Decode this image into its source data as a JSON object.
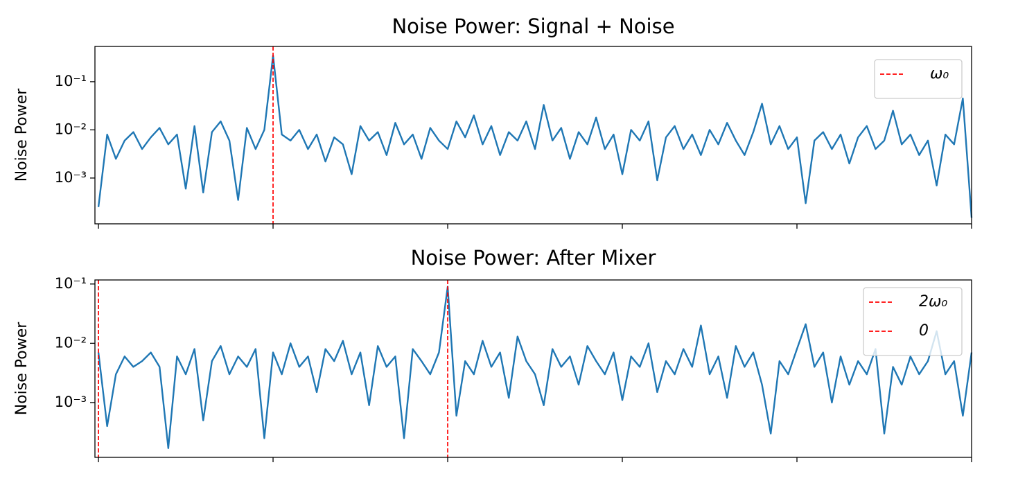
{
  "chart_data": [
    {
      "type": "line",
      "title": "Noise Power: Signal + Noise",
      "y_label": "Noise Power",
      "y_scale": "log",
      "x": [
        0,
        1,
        2,
        3,
        4,
        5,
        6,
        7,
        8,
        9,
        10,
        11,
        12,
        13,
        14,
        15,
        16,
        17,
        18,
        19,
        20,
        21,
        22,
        23,
        24,
        25,
        26,
        27,
        28,
        29,
        30,
        31,
        32,
        33,
        34,
        35,
        36,
        37,
        38,
        39,
        40,
        41,
        42,
        43,
        44,
        45,
        46,
        47,
        48,
        49,
        50,
        51,
        52,
        53,
        54,
        55,
        56,
        57,
        58,
        59,
        60,
        61,
        62,
        63,
        64,
        65,
        66,
        67,
        68,
        69,
        70,
        71,
        72,
        73,
        74,
        75,
        76,
        77,
        78,
        79,
        80,
        81,
        82,
        83,
        84,
        85,
        86,
        87,
        88,
        89,
        90,
        91,
        92,
        93,
        94,
        95,
        96,
        97,
        98,
        99,
        100
      ],
      "series": [
        {
          "color": "#1f77b4",
          "values": [
            0.00025,
            0.008,
            0.0025,
            0.006,
            0.009,
            0.004,
            0.007,
            0.011,
            0.005,
            0.008,
            0.0006,
            0.012,
            0.0005,
            0.009,
            0.015,
            0.006,
            0.00035,
            0.011,
            0.004,
            0.01,
            0.35,
            0.008,
            0.006,
            0.01,
            0.004,
            0.008,
            0.0022,
            0.007,
            0.005,
            0.0012,
            0.012,
            0.006,
            0.009,
            0.003,
            0.014,
            0.005,
            0.008,
            0.0025,
            0.011,
            0.006,
            0.004,
            0.015,
            0.007,
            0.02,
            0.005,
            0.012,
            0.003,
            0.009,
            0.006,
            0.015,
            0.004,
            0.033,
            0.006,
            0.011,
            0.0025,
            0.009,
            0.005,
            0.018,
            0.004,
            0.008,
            0.0012,
            0.01,
            0.006,
            0.015,
            0.0009,
            0.007,
            0.012,
            0.004,
            0.008,
            0.003,
            0.01,
            0.005,
            0.014,
            0.006,
            0.003,
            0.009,
            0.035,
            0.005,
            0.012,
            0.004,
            0.007,
            0.0003,
            0.006,
            0.009,
            0.004,
            0.008,
            0.002,
            0.007,
            0.012,
            0.004,
            0.006,
            0.025,
            0.005,
            0.008,
            0.003,
            0.006,
            0.0007,
            0.008,
            0.005,
            0.045,
            0.00015
          ]
        }
      ],
      "vlines": [
        {
          "x": 20,
          "label": "ω₀",
          "color": "#ff0000"
        }
      ],
      "xlim": [
        -0.4,
        100
      ],
      "xticks": [
        0,
        20,
        40,
        60,
        80,
        100
      ],
      "ylim": [
        0.000112,
        0.54
      ],
      "yticks": [
        {
          "value": 0.1,
          "label": "10⁻¹"
        },
        {
          "value": 0.01,
          "label": "10⁻²"
        },
        {
          "value": 0.001,
          "label": "10⁻³"
        }
      ],
      "legend": "upper right"
    },
    {
      "type": "line",
      "title": "Noise Power: After Mixer",
      "y_label": "Noise Power",
      "y_scale": "log",
      "x": [
        0,
        1,
        2,
        3,
        4,
        5,
        6,
        7,
        8,
        9,
        10,
        11,
        12,
        13,
        14,
        15,
        16,
        17,
        18,
        19,
        20,
        21,
        22,
        23,
        24,
        25,
        26,
        27,
        28,
        29,
        30,
        31,
        32,
        33,
        34,
        35,
        36,
        37,
        38,
        39,
        40,
        41,
        42,
        43,
        44,
        45,
        46,
        47,
        48,
        49,
        50,
        51,
        52,
        53,
        54,
        55,
        56,
        57,
        58,
        59,
        60,
        61,
        62,
        63,
        64,
        65,
        66,
        67,
        68,
        69,
        70,
        71,
        72,
        73,
        74,
        75,
        76,
        77,
        78,
        79,
        80,
        81,
        82,
        83,
        84,
        85,
        86,
        87,
        88,
        89,
        90,
        91,
        92,
        93,
        94,
        95,
        96,
        97,
        98,
        99,
        100
      ],
      "series": [
        {
          "color": "#1f77b4",
          "values": [
            0.007,
            0.0004,
            0.003,
            0.006,
            0.004,
            0.005,
            0.007,
            0.004,
            0.00017,
            0.006,
            0.003,
            0.008,
            0.0005,
            0.005,
            0.009,
            0.003,
            0.006,
            0.004,
            0.008,
            0.00025,
            0.007,
            0.003,
            0.01,
            0.004,
            0.006,
            0.0015,
            0.008,
            0.005,
            0.011,
            0.003,
            0.007,
            0.0009,
            0.009,
            0.004,
            0.006,
            0.00025,
            0.008,
            0.005,
            0.003,
            0.007,
            0.09,
            0.0006,
            0.005,
            0.003,
            0.011,
            0.004,
            0.007,
            0.0012,
            0.013,
            0.005,
            0.003,
            0.0009,
            0.008,
            0.004,
            0.006,
            0.002,
            0.009,
            0.005,
            0.003,
            0.007,
            0.0011,
            0.006,
            0.004,
            0.01,
            0.0015,
            0.005,
            0.003,
            0.008,
            0.004,
            0.02,
            0.003,
            0.006,
            0.0012,
            0.009,
            0.004,
            0.007,
            0.002,
            0.0003,
            0.005,
            0.003,
            0.008,
            0.021,
            0.004,
            0.007,
            0.001,
            0.006,
            0.002,
            0.005,
            0.003,
            0.008,
            0.0003,
            0.004,
            0.002,
            0.006,
            0.003,
            0.005,
            0.016,
            0.003,
            0.005,
            0.0006,
            0.007
          ]
        }
      ],
      "vlines": [
        {
          "x": 40,
          "label": "2ω₀",
          "color": "#ff0000"
        },
        {
          "x": 0,
          "label": "0",
          "color": "#ff0000"
        }
      ],
      "xlim": [
        -0.4,
        100
      ],
      "xticks": [
        0,
        20,
        40,
        60,
        80,
        100
      ],
      "ylim": [
        0.000119,
        0.117
      ],
      "yticks": [
        {
          "value": 0.1,
          "label": "10⁻¹"
        },
        {
          "value": 0.01,
          "label": "10⁻²"
        },
        {
          "value": 0.001,
          "label": "10⁻³"
        }
      ],
      "legend": "upper right"
    }
  ]
}
